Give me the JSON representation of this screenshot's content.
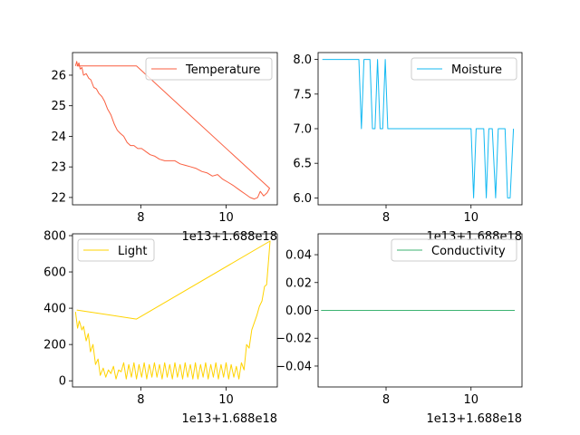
{
  "chart_data": [
    {
      "type": "line",
      "color": "#fa5f40",
      "legend": "Temperature",
      "legend_loc": "upper right",
      "grid": false,
      "xlim": [
        6.4,
        11.2
      ],
      "ylim": [
        21.76,
        26.74
      ],
      "xticks": [
        8,
        10
      ],
      "xtick_labels": [
        "8",
        "10"
      ],
      "yticks": [
        22,
        23,
        24,
        25,
        26
      ],
      "ytick_labels": [
        "22",
        "23",
        "24",
        "25",
        "26"
      ],
      "x_offset_text": "1e13+1.688e18",
      "series": [
        {
          "x": [
            6.47,
            6.5,
            6.52,
            6.55,
            6.58,
            6.62,
            6.66,
            6.72,
            6.78,
            6.83,
            6.9,
            6.96,
            7.02,
            7.09,
            7.15,
            7.22,
            7.3,
            7.38,
            7.45,
            7.52,
            7.6,
            7.68,
            7.76,
            7.84,
            7.93,
            8.02,
            8.12,
            8.22,
            8.33,
            8.44,
            8.56,
            8.68,
            8.8,
            8.92,
            9.05,
            9.18,
            9.3,
            9.43,
            9.56,
            9.68,
            9.8,
            9.92,
            10.04,
            10.16,
            10.26,
            10.36,
            10.46,
            10.56,
            10.66,
            10.74,
            10.8,
            10.88,
            10.96,
            11.02,
            7.9,
            6.5
          ],
          "y": [
            26.3,
            26.45,
            26.3,
            26.4,
            26.2,
            26.25,
            26.0,
            26.05,
            25.9,
            25.85,
            25.6,
            25.55,
            25.4,
            25.3,
            25.15,
            24.9,
            24.7,
            24.4,
            24.2,
            24.1,
            24.0,
            23.8,
            23.7,
            23.7,
            23.6,
            23.6,
            23.5,
            23.4,
            23.35,
            23.25,
            23.2,
            23.2,
            23.2,
            23.1,
            23.05,
            23.0,
            22.95,
            22.85,
            22.8,
            22.7,
            22.75,
            22.6,
            22.5,
            22.4,
            22.3,
            22.2,
            22.1,
            22.0,
            21.95,
            22.0,
            22.2,
            22.05,
            22.15,
            22.3,
            26.3,
            26.3
          ]
        }
      ]
    },
    {
      "type": "line",
      "color": "#13b9f2",
      "legend": "Moisture",
      "legend_loc": "upper right",
      "grid": false,
      "xlim": [
        6.4,
        11.2
      ],
      "ylim": [
        5.9,
        8.1
      ],
      "xticks": [
        8,
        10
      ],
      "xtick_labels": [
        "8",
        "10"
      ],
      "yticks": [
        6.0,
        6.5,
        7.0,
        7.5,
        8.0
      ],
      "ytick_labels": [
        "6.0",
        "6.5",
        "7.0",
        "7.5",
        "8.0"
      ],
      "x_offset_text": "1e13+1.688e18",
      "series": [
        {
          "x": [
            6.5,
            7.3,
            7.36,
            7.42,
            7.48,
            7.55,
            7.62,
            7.68,
            7.74,
            7.8,
            7.86,
            7.92,
            7.98,
            8.04,
            8.1,
            8.16,
            8.5,
            9.0,
            9.5,
            10.0,
            10.06,
            10.12,
            10.2,
            10.3,
            10.36,
            10.42,
            10.5,
            10.58,
            10.64,
            10.72,
            10.8,
            10.86,
            10.92,
            11.0
          ],
          "y": [
            8.0,
            8.0,
            8.0,
            7.0,
            8.0,
            8.0,
            8.0,
            7.0,
            7.0,
            8.0,
            7.0,
            7.0,
            8.0,
            7.0,
            7.0,
            7.0,
            7.0,
            7.0,
            7.0,
            7.0,
            6.0,
            7.0,
            7.0,
            7.0,
            6.0,
            7.0,
            7.0,
            6.0,
            7.0,
            7.0,
            7.0,
            6.0,
            6.0,
            7.0
          ]
        }
      ]
    },
    {
      "type": "line",
      "color": "#ffd300",
      "legend": "Light",
      "legend_loc": "upper left",
      "grid": false,
      "xlim": [
        6.4,
        11.2
      ],
      "ylim": [
        -34,
        810
      ],
      "xticks": [
        8,
        10
      ],
      "xtick_labels": [
        "8",
        "10"
      ],
      "yticks": [
        0,
        200,
        400,
        600,
        800
      ],
      "ytick_labels": [
        "0",
        "200",
        "400",
        "600",
        "800"
      ],
      "x_offset_text": "1e13+1.688e18",
      "series": [
        {
          "x": [
            6.47,
            6.52,
            6.56,
            6.62,
            6.66,
            6.72,
            6.77,
            6.82,
            6.88,
            6.94,
            7.0,
            7.05,
            7.12,
            7.18,
            7.24,
            7.3,
            7.36,
            7.42,
            7.48,
            7.54,
            7.6,
            7.66,
            7.72,
            7.78,
            7.84,
            7.9,
            7.96,
            8.02,
            8.08,
            8.14,
            8.2,
            8.26,
            8.32,
            8.38,
            8.44,
            8.5,
            8.56,
            8.62,
            8.68,
            8.74,
            8.8,
            8.86,
            8.92,
            8.98,
            9.04,
            9.1,
            9.16,
            9.22,
            9.28,
            9.34,
            9.4,
            9.46,
            9.52,
            9.58,
            9.64,
            9.7,
            9.76,
            9.82,
            9.88,
            9.94,
            10.0,
            10.06,
            10.12,
            10.18,
            10.24,
            10.3,
            10.36,
            10.42,
            10.48,
            10.54,
            10.6,
            10.66,
            10.72,
            10.78,
            10.84,
            10.9,
            10.95,
            11.0,
            11.03,
            7.9,
            6.5
          ],
          "y": [
            380,
            290,
            330,
            280,
            300,
            220,
            260,
            160,
            200,
            90,
            120,
            30,
            70,
            20,
            60,
            40,
            80,
            10,
            60,
            50,
            100,
            10,
            90,
            20,
            100,
            10,
            90,
            20,
            100,
            10,
            90,
            20,
            100,
            20,
            90,
            10,
            100,
            20,
            90,
            10,
            100,
            20,
            90,
            10,
            100,
            20,
            90,
            10,
            100,
            10,
            90,
            20,
            100,
            10,
            90,
            20,
            100,
            10,
            90,
            20,
            100,
            10,
            90,
            20,
            80,
            10,
            100,
            60,
            200,
            180,
            280,
            320,
            360,
            410,
            440,
            520,
            530,
            680,
            770,
            340,
            390
          ]
        }
      ]
    },
    {
      "type": "line",
      "color": "#3cb371",
      "legend": "Conductivity",
      "legend_loc": "upper right",
      "grid": false,
      "xlim": [
        6.4,
        11.2
      ],
      "ylim": [
        -0.055,
        0.055
      ],
      "xticks": [
        8,
        10
      ],
      "xtick_labels": [
        "8",
        "10"
      ],
      "yticks": [
        -0.04,
        -0.02,
        0.0,
        0.02,
        0.04
      ],
      "ytick_labels": [
        "−0.04",
        "−0.02",
        "0.00",
        "0.02",
        "0.04"
      ],
      "x_offset_text": "1e13+1.688e18",
      "series": [
        {
          "x": [
            6.47,
            11.03
          ],
          "y": [
            0,
            0
          ]
        }
      ]
    }
  ]
}
